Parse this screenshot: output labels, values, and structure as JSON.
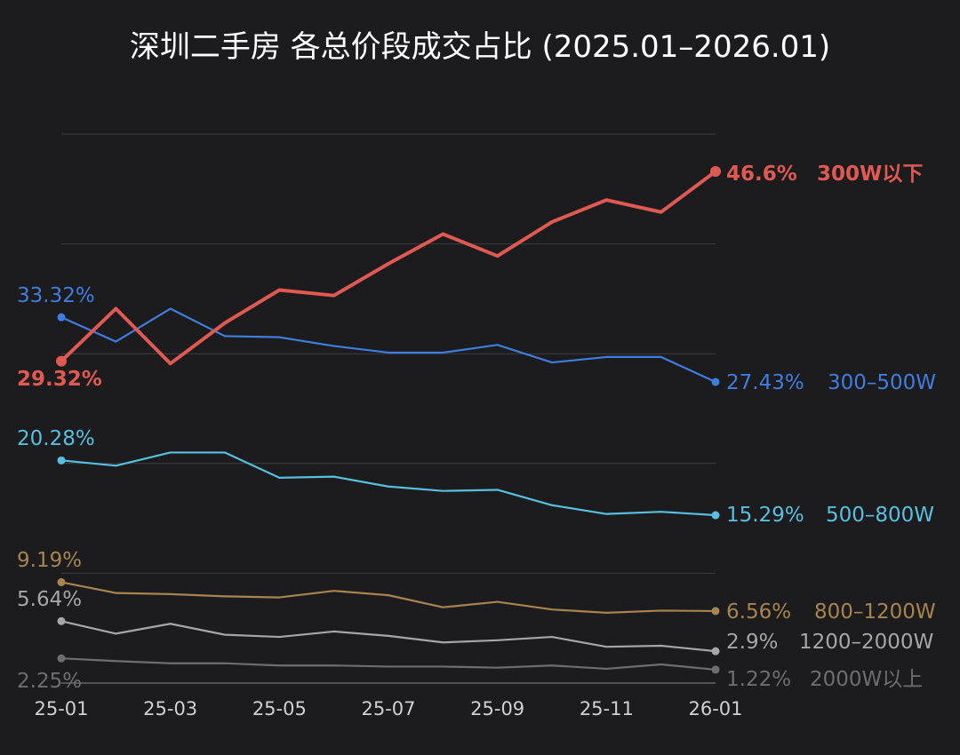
{
  "chart_data": {
    "type": "line",
    "title": "深圳二手房 各总价段成交占比 (2025.01–2026.01)",
    "x": [
      "25-01",
      "25-02",
      "25-03",
      "25-04",
      "25-05",
      "25-06",
      "25-07",
      "25-08",
      "25-09",
      "25-10",
      "25-11",
      "25-12",
      "26-01"
    ],
    "x_tick_labels": [
      "25-01",
      "25-03",
      "25-05",
      "25-07",
      "25-09",
      "25-11",
      "26-01"
    ],
    "ylim": [
      0,
      50
    ],
    "grid": true,
    "series": [
      {
        "name": "300W以下",
        "color": "#e05a52",
        "start_label": "29.32%",
        "end_label": "46.6%",
        "values": [
          29.32,
          34.1,
          29.1,
          32.8,
          35.8,
          35.3,
          38.2,
          40.9,
          38.9,
          42.0,
          44.0,
          42.9,
          46.6
        ]
      },
      {
        "name": "300–500W",
        "color": "#3f7ee0",
        "start_label": "33.32%",
        "end_label": "27.43%",
        "values": [
          33.32,
          31.1,
          34.1,
          31.6,
          31.5,
          30.7,
          30.1,
          30.1,
          30.8,
          29.2,
          29.7,
          29.7,
          27.43
        ]
      },
      {
        "name": "500–800W",
        "color": "#57c0e0",
        "start_label": "20.28%",
        "end_label": "15.29%",
        "values": [
          20.28,
          19.8,
          21.0,
          21.0,
          18.7,
          18.8,
          17.9,
          17.5,
          17.6,
          16.2,
          15.4,
          15.6,
          15.29
        ]
      },
      {
        "name": "800–1200W",
        "color": "#a8844e",
        "start_label": "9.19%",
        "end_label": "6.56%",
        "values": [
          9.19,
          8.2,
          8.1,
          7.9,
          7.8,
          8.4,
          8.0,
          6.9,
          7.4,
          6.7,
          6.4,
          6.6,
          6.56
        ]
      },
      {
        "name": "1200–2000W",
        "color": "#a6a6a6",
        "start_label": "5.64%",
        "end_label": "2.9%",
        "values": [
          5.64,
          4.5,
          5.4,
          4.4,
          4.2,
          4.7,
          4.3,
          3.7,
          3.9,
          4.2,
          3.3,
          3.4,
          2.9
        ]
      },
      {
        "name": "2000W以上",
        "color": "#6e6e6e",
        "start_label": "2.25%",
        "end_label": "1.22%",
        "values": [
          2.25,
          2.0,
          1.8,
          1.8,
          1.6,
          1.6,
          1.5,
          1.5,
          1.4,
          1.6,
          1.3,
          1.7,
          1.22
        ]
      }
    ]
  }
}
